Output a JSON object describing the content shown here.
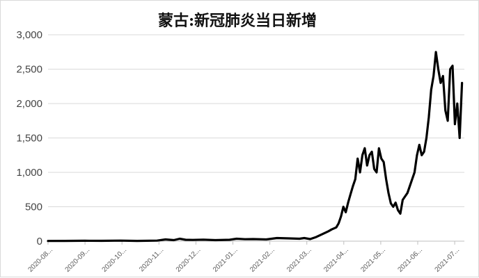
{
  "chart_data": {
    "type": "line",
    "title": "蒙古:新冠肺炎当日新增",
    "xlabel": "",
    "ylabel": "",
    "ylim": [
      0,
      3000
    ],
    "y_ticks": [
      0,
      500,
      1000,
      1500,
      2000,
      2500,
      3000
    ],
    "y_tick_labels": [
      "0",
      "500",
      "1,000",
      "1,500",
      "2,000",
      "2,500",
      "3,000"
    ],
    "x_tick_labels": [
      "2020-08...",
      "2020-09...",
      "2020-10...",
      "2020-11...",
      "2020-12...",
      "2021-01...",
      "2021-02...",
      "2021-03...",
      "2021-04...",
      "2021-05...",
      "2021-06...",
      "2021-07..."
    ],
    "grid": true,
    "legend": "none",
    "line_color": "#000000",
    "series": [
      {
        "x": [
          "2020-08-01",
          "2020-08-15",
          "2020-09-01",
          "2020-09-15",
          "2020-10-01",
          "2020-10-15",
          "2020-11-01",
          "2020-11-08",
          "2020-11-15",
          "2020-11-20",
          "2020-11-25",
          "2020-12-01",
          "2020-12-10",
          "2020-12-20",
          "2021-01-01",
          "2021-01-07",
          "2021-01-14",
          "2021-01-21",
          "2021-02-01",
          "2021-02-10",
          "2021-02-20",
          "2021-03-01",
          "2021-03-05",
          "2021-03-10",
          "2021-03-15",
          "2021-03-20",
          "2021-03-25",
          "2021-03-28",
          "2021-04-01",
          "2021-04-03",
          "2021-04-05",
          "2021-04-07",
          "2021-04-09",
          "2021-04-11",
          "2021-04-13",
          "2021-04-15",
          "2021-04-17",
          "2021-04-19",
          "2021-04-21",
          "2021-04-23",
          "2021-04-25",
          "2021-04-27",
          "2021-04-29",
          "2021-05-01",
          "2021-05-03",
          "2021-05-05",
          "2021-05-07",
          "2021-05-09",
          "2021-05-11",
          "2021-05-13",
          "2021-05-15",
          "2021-05-17",
          "2021-05-19",
          "2021-05-21",
          "2021-05-23",
          "2021-05-25",
          "2021-05-27",
          "2021-05-29",
          "2021-05-31",
          "2021-06-02",
          "2021-06-04",
          "2021-06-06",
          "2021-06-08",
          "2021-06-10",
          "2021-06-12",
          "2021-06-14",
          "2021-06-16",
          "2021-06-18",
          "2021-06-20",
          "2021-06-22",
          "2021-06-24",
          "2021-06-26",
          "2021-06-28",
          "2021-06-30",
          "2021-07-02",
          "2021-07-04",
          "2021-07-06",
          "2021-07-08",
          "2021-07-10",
          "2021-07-12",
          "2021-07-14",
          "2021-07-16"
        ],
        "values": [
          3,
          4,
          6,
          5,
          8,
          4,
          8,
          25,
          15,
          35,
          20,
          18,
          22,
          15,
          20,
          35,
          28,
          30,
          25,
          45,
          40,
          35,
          45,
          30,
          60,
          100,
          140,
          170,
          200,
          260,
          360,
          500,
          420,
          560,
          680,
          800,
          900,
          1200,
          1000,
          1250,
          1350,
          1100,
          1250,
          1300,
          1050,
          1000,
          1350,
          1200,
          1150,
          900,
          700,
          550,
          500,
          560,
          450,
          400,
          600,
          650,
          700,
          800,
          900,
          1000,
          1250,
          1400,
          1250,
          1300,
          1500,
          1800,
          2200,
          2400,
          2750,
          2500,
          2300,
          2400,
          1900,
          1750,
          2500,
          2550,
          1700,
          2000,
          1500,
          2300
        ],
        "color": "#000000"
      }
    ]
  }
}
